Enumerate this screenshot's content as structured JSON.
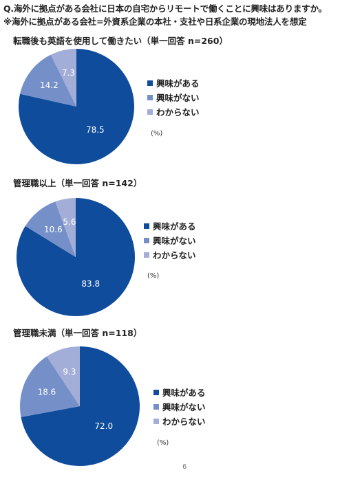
{
  "question": "Q.海外に拠点がある会社に日本の自宅からリモートで働くことに興味はありますか。",
  "note": "※海外に拠点がある会社=外資系企業の本社・支社や日系企業の現地法人を想定",
  "legend_labels": [
    "興味がある",
    "興味がない",
    "わからない"
  ],
  "colors": [
    "#0f4c9c",
    "#7590c9",
    "#a3aed8"
  ],
  "chart_data": [
    {
      "type": "pie",
      "title": "転職後も英語を使用して働きたい（単一回答 n=260）",
      "categories": [
        "興味がある",
        "興味がない",
        "わからない"
      ],
      "values": [
        78.5,
        14.2,
        7.3
      ],
      "unit": "(%)"
    },
    {
      "type": "pie",
      "title": "管理職以上（単一回答 n=142）",
      "categories": [
        "興味がある",
        "興味がない",
        "わからない"
      ],
      "values": [
        83.8,
        10.6,
        5.6
      ],
      "unit": "(%)"
    },
    {
      "type": "pie",
      "title": "管理職未満（単一回答 n=118）",
      "categories": [
        "興味がある",
        "興味がない",
        "わからない"
      ],
      "values": [
        72.0,
        18.6,
        9.3
      ],
      "unit": "(%)"
    }
  ],
  "page_number": "6"
}
